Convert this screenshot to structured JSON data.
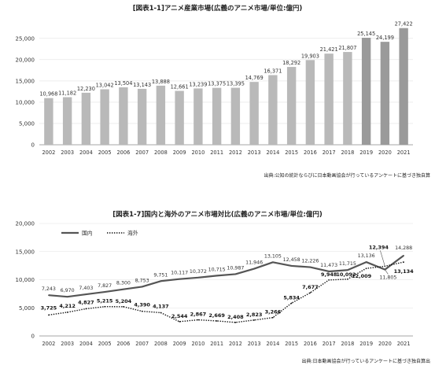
{
  "chart_data": [
    {
      "type": "bar",
      "title": "[図表1-1]アニメ産業市場(広義のアニメ市場/単位:億円)",
      "categories": [
        "2002",
        "2003",
        "2004",
        "2005",
        "2006",
        "2007",
        "2008",
        "2009",
        "2010",
        "2011",
        "2012",
        "2013",
        "2014",
        "2015",
        "2016",
        "2017",
        "2018",
        "2019",
        "2020",
        "2021"
      ],
      "values": [
        10968,
        11182,
        12230,
        13042,
        13504,
        13143,
        13888,
        12661,
        13239,
        13375,
        13395,
        14769,
        16371,
        18292,
        19903,
        21421,
        21807,
        25145,
        24199,
        27422
      ],
      "value_labels": [
        "10,968",
        "11,182",
        "12,230",
        "13,042",
        "13,504",
        "13,143",
        "13,888",
        "12,661",
        "13,239",
        "13,375",
        "13,395",
        "14,769",
        "16,371",
        "18,292",
        "19,903",
        "21,421",
        "21,807",
        "25,145",
        "24,199",
        "27,422"
      ],
      "yticks": [
        "0",
        "5,000",
        "10,000",
        "15,000",
        "20,000",
        "25,000"
      ],
      "ylim": [
        0,
        27000
      ],
      "grid": true,
      "source": "出典:公知の統計ならびに日本動画協会が行っているアンケートに基づき独自算",
      "colors": {
        "bar_light": "#b9b9b9",
        "bar_dark": "#9a9a9a",
        "grid": "#e2e2e2"
      }
    },
    {
      "type": "line",
      "title": "[図表1-7]国内と海外のアニメ市場対比(広義のアニメ市場/単位:億円)",
      "categories": [
        "2002",
        "2003",
        "2004",
        "2005",
        "2006",
        "2007",
        "2008",
        "2009",
        "2010",
        "2011",
        "2012",
        "2013",
        "2014",
        "2015",
        "2016",
        "2017",
        "2018",
        "2019",
        "2020",
        "2021"
      ],
      "series": [
        {
          "name": "国内",
          "style": "solid",
          "values": [
            7243,
            6970,
            7403,
            7827,
            8300,
            8753,
            9751,
            10117,
            10372,
            10715,
            10987,
            11946,
            13105,
            12458,
            12226,
            11473,
            11715,
            13136,
            11805,
            14288
          ],
          "labels": [
            "7,243",
            "6,970",
            "7,403",
            "7,827",
            "8,300",
            "8,753",
            "9,751",
            "10,117",
            "10,372",
            "10,715",
            "10,987",
            "11,946",
            "13,105",
            "12,458",
            "12,226",
            "11,473",
            "11,715",
            "13,136",
            "11,805",
            "14,288"
          ]
        },
        {
          "name": "海外",
          "style": "dotted",
          "values": [
            3725,
            4212,
            4827,
            5215,
            5204,
            4390,
            4137,
            2544,
            2867,
            2669,
            2408,
            2823,
            3266,
            5834,
            7677,
            9948,
            10092,
            12009,
            12394,
            13134
          ],
          "labels": [
            "3,725",
            "4,212",
            "4,827",
            "5,215",
            "5,204",
            "4,390",
            "4,137",
            "2,544",
            "2,867",
            "2,669",
            "2,408",
            "2,823",
            "3,266",
            "5,834",
            "7,677",
            "9,948",
            "10,092",
            "12,009",
            "12,394",
            "13,134"
          ]
        }
      ],
      "yticks": [
        "0",
        "5,000",
        "10,000",
        "15,000",
        "20,000"
      ],
      "ylim": [
        0,
        20000
      ],
      "grid": true,
      "legend_position": "top-left",
      "source": "出典:日本動画協会が行っているアンケートに基づき独自算出",
      "colors": {
        "domestic": "#555555",
        "overseas": "#111111",
        "grid": "#e2e2e2"
      }
    }
  ]
}
